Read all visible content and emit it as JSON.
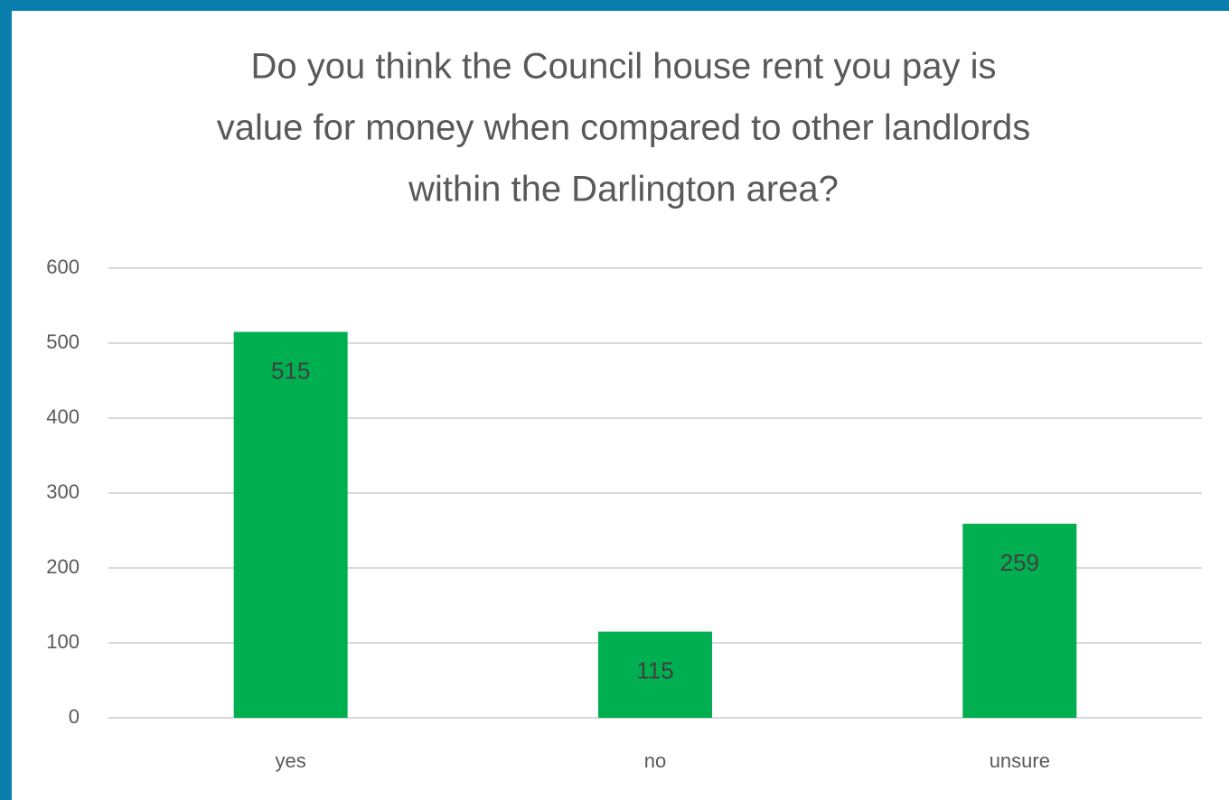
{
  "chart_data": {
    "type": "bar",
    "title": [
      "Do you think the Council house rent you pay is",
      "value for money when compared to other landlords",
      "within the Darlington area?"
    ],
    "categories": [
      "yes",
      "no",
      "unsure"
    ],
    "values": [
      515,
      115,
      259
    ],
    "color": "#00b050",
    "ylim": [
      0,
      600
    ],
    "yticks": [
      0,
      100,
      200,
      300,
      400,
      500,
      600
    ],
    "grid": true
  }
}
